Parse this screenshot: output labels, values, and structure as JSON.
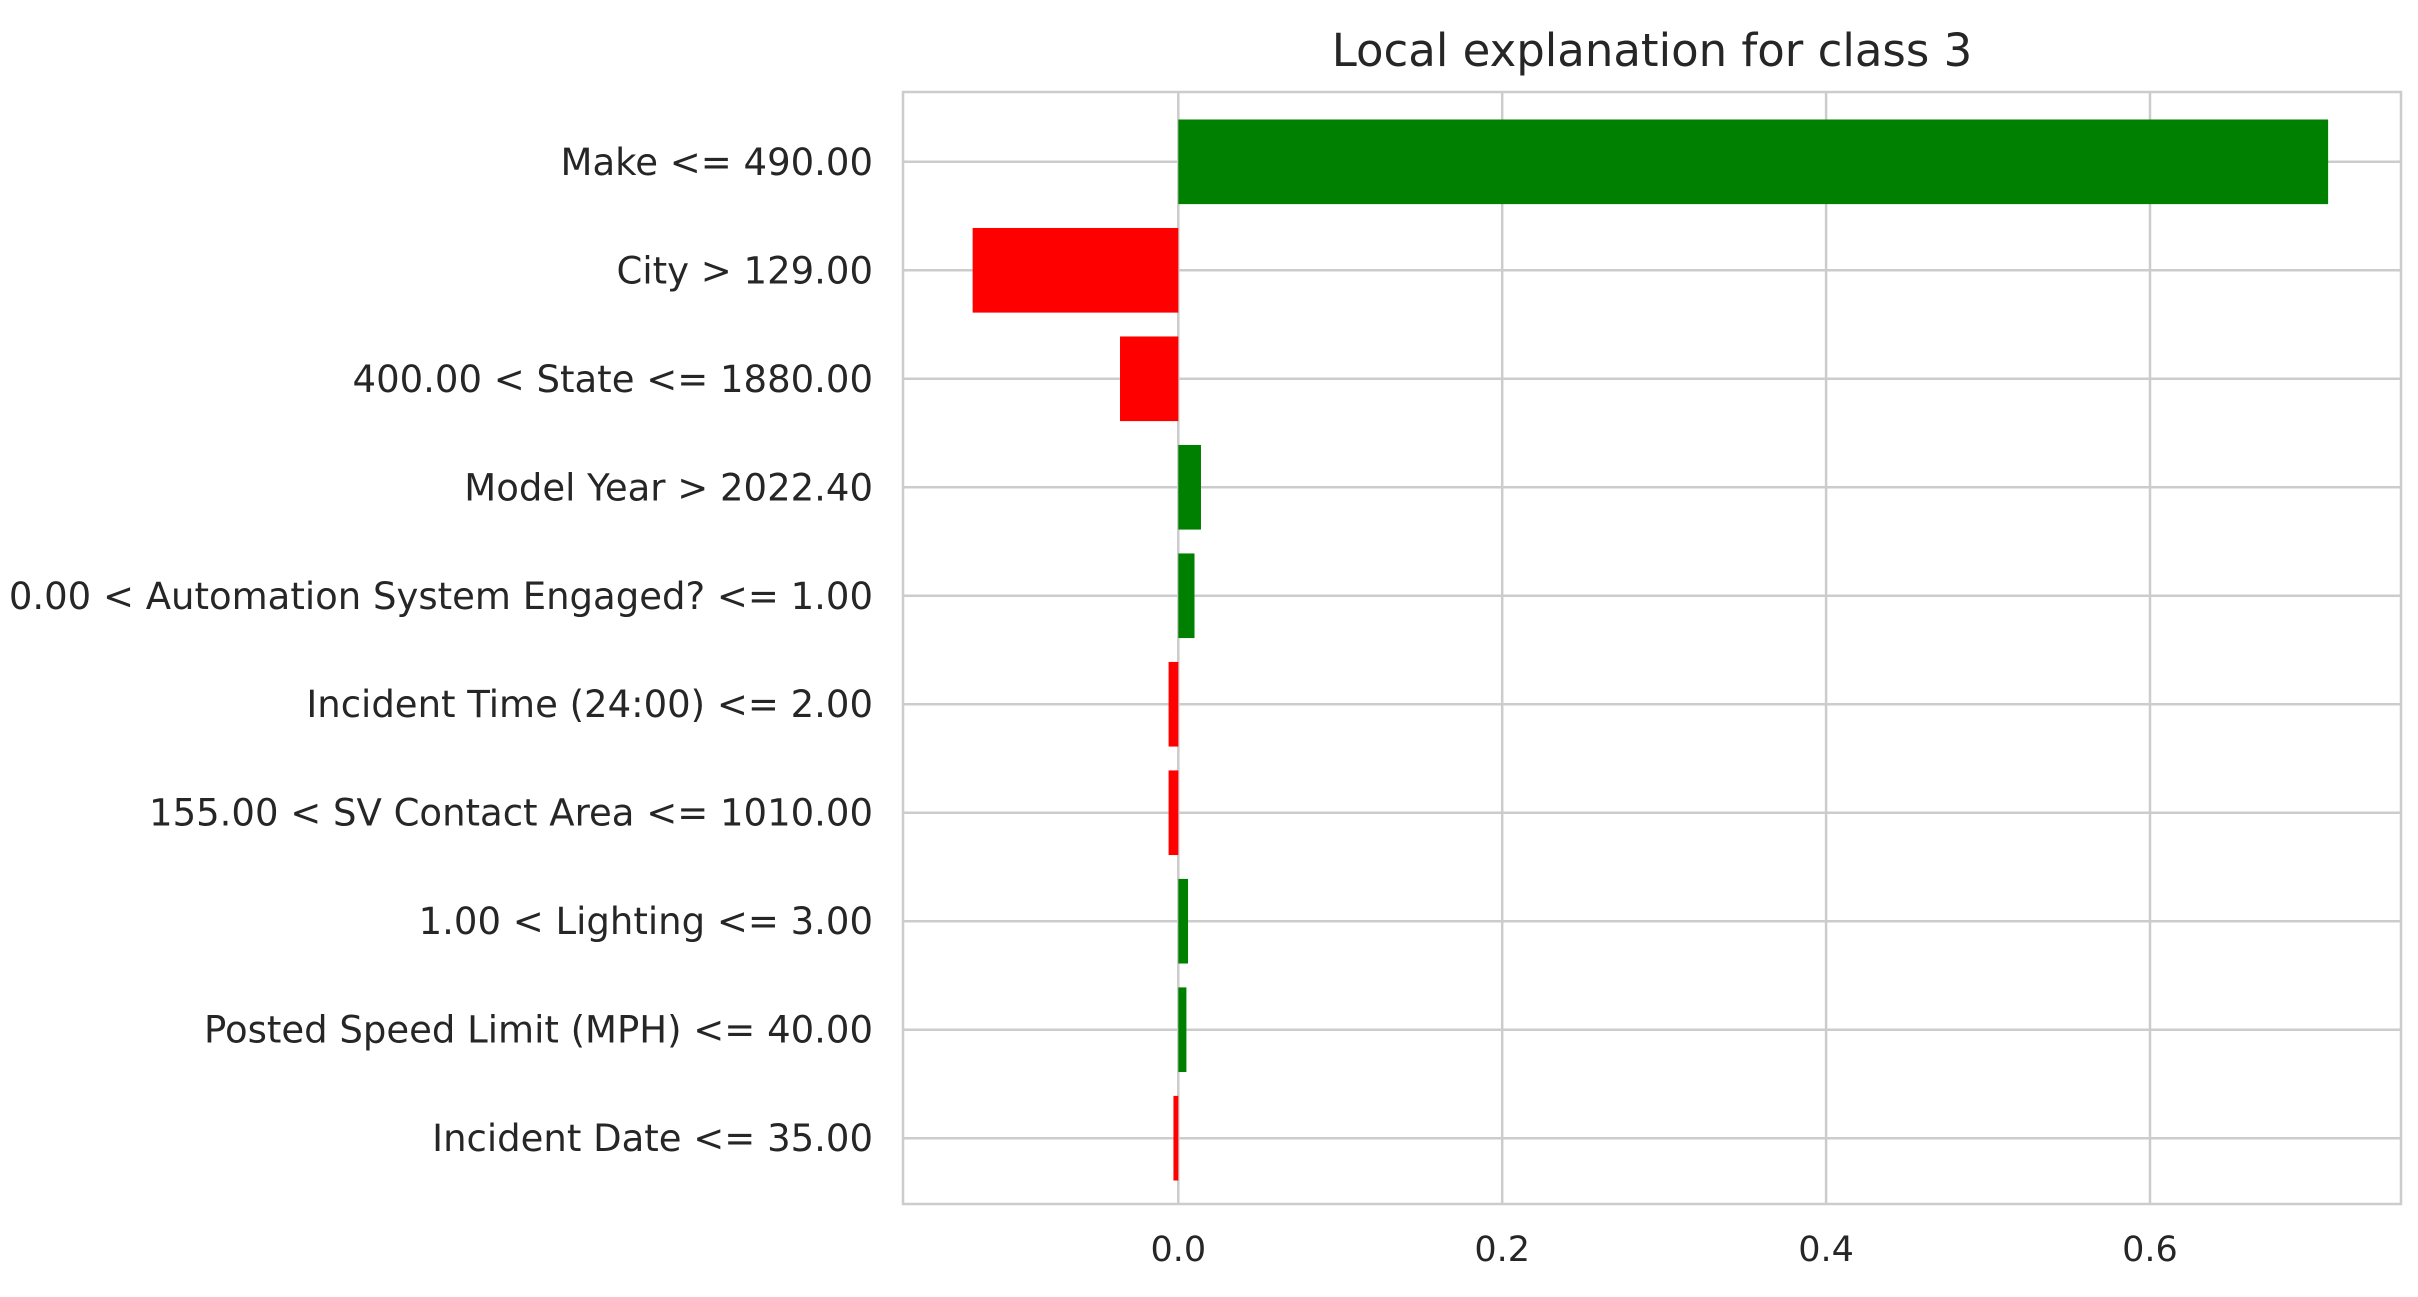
{
  "chart_data": {
    "type": "bar",
    "orientation": "horizontal",
    "title": "Local explanation for class 3",
    "xlabel": "",
    "ylabel": "",
    "xlim": [
      -0.17,
      0.755
    ],
    "xticks": [
      0.0,
      0.2,
      0.4,
      0.6
    ],
    "xtick_labels": [
      "0.0",
      "0.2",
      "0.4",
      "0.6"
    ],
    "grid": true,
    "positive_color": "#008000",
    "negative_color": "#ff0000",
    "categories": [
      "Make <= 490.00",
      "City > 129.00",
      "400.00 < State <= 1880.00",
      "Model Year > 2022.40",
      "0.00 < Automation System Engaged? <= 1.00",
      "Incident Time (24:00) <= 2.00",
      "155.00 < SV Contact Area <= 1010.00",
      "1.00 < Lighting <= 3.00",
      "Posted Speed Limit (MPH) <= 40.00",
      "Incident Date <= 35.00"
    ],
    "values": [
      0.71,
      -0.127,
      -0.036,
      0.014,
      0.01,
      -0.006,
      -0.006,
      0.006,
      0.005,
      -0.003
    ]
  }
}
